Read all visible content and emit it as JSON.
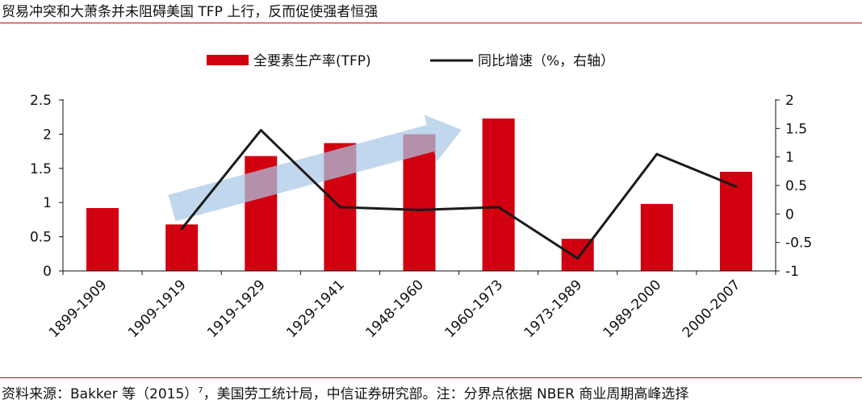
{
  "header": {
    "title": "贸易冲突和大萧条并未阻碍美国 TFP 上行，反而促使强者恒强"
  },
  "footer": {
    "source_prefix": "资料来源：Bakker 等（2015）",
    "source_sup": "7",
    "source_suffix": "，美国劳工统计局，中信证券研究部。注：分界点依据 NBER 商业周期高峰选择"
  },
  "colors": {
    "bar": "#d10010",
    "line": "#1a1a1a",
    "arrow": "#a9c8e8",
    "rule": "#d10010"
  },
  "chart_data": {
    "type": "bar",
    "title": "",
    "categories": [
      "1899-1909",
      "1909-1919",
      "1919-1929",
      "1929-1941",
      "1948-1960",
      "1960-1973",
      "1973-1989",
      "1989-2000",
      "2000-2007"
    ],
    "series": [
      {
        "name": "全要素生产率(TFP)",
        "type": "bar",
        "axis": "left",
        "values": [
          0.92,
          0.68,
          1.68,
          1.87,
          2.0,
          2.23,
          0.47,
          0.98,
          1.45
        ]
      },
      {
        "name": "同比增速（%，右轴）",
        "type": "line",
        "axis": "right",
        "values": [
          null,
          -0.26,
          1.47,
          0.12,
          0.07,
          0.12,
          -0.78,
          1.05,
          0.48
        ]
      }
    ],
    "left_axis": {
      "ylim": [
        0,
        2.5
      ],
      "ticks": [
        "0",
        "0.5",
        "1",
        "1.5",
        "2",
        "2.5"
      ]
    },
    "right_axis": {
      "ylim": [
        -1,
        2
      ],
      "ticks": [
        "-1",
        "-0.5",
        "0",
        "0.5",
        "1",
        "1.5",
        "2"
      ]
    },
    "annotation": "upward trend arrow (blue) spanning 1909-1919 to 1960-1973",
    "xlabel": "",
    "ylabel": "",
    "legend": "top-center"
  }
}
